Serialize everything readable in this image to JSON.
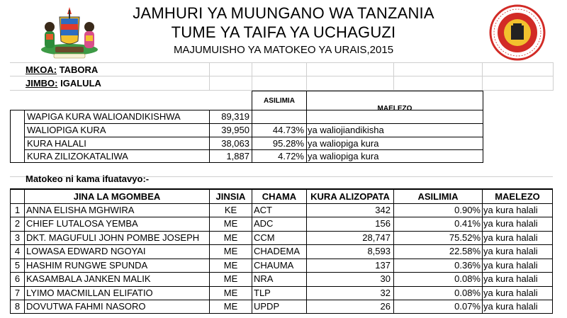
{
  "header": {
    "title_line1": "JAMHURI YA MUUNGANO WA TANZANIA",
    "title_line2": "TUME YA TAIFA YA UCHAGUZI",
    "subtitle": "MAJUMUISHO YA MATOKEO YA URAIS,2015"
  },
  "location": {
    "mkoa_label": "MKOA:",
    "mkoa_value": "TABORA",
    "jimbo_label": "JIMBO:",
    "jimbo_value": "IGALULA"
  },
  "summary": {
    "headers": {
      "asilimia": "ASILIMIA",
      "maelezo": "MAELEZO"
    },
    "rows": [
      {
        "label": "WAPIGA KURA WALIOANDIKISHWA",
        "value": "89,319",
        "percent": "",
        "note": ""
      },
      {
        "label": "WALIOPIGA KURA",
        "value": "39,950",
        "percent": "44.73%",
        "note": "ya waliojiandikisha"
      },
      {
        "label": "KURA HALALI",
        "value": "38,063",
        "percent": "95.28%",
        "note": "ya waliopiga kura"
      },
      {
        "label": "KURA ZILIZOKATALIWA",
        "value": "1,887",
        "percent": "4.72%",
        "note": "ya waliopiga kura"
      }
    ]
  },
  "results_intro": "Matokeo ni kama ifuatavyo:-",
  "results": {
    "headers": {
      "name": "JINA LA MGOMBEA",
      "gender": "JINSIA",
      "party": "CHAMA",
      "votes": "KURA ALIZOPATA",
      "percent": "ASILIMIA",
      "note": "MAELEZO"
    },
    "rows": [
      {
        "no": "1",
        "name": "ANNA ELISHA MGHWIRA",
        "gender": "KE",
        "party": "ACT",
        "votes": "342",
        "percent": "0.90%",
        "note": "ya kura halali"
      },
      {
        "no": "2",
        "name": "CHIEF LUTALOSA YEMBA",
        "gender": "ME",
        "party": "ADC",
        "votes": "156",
        "percent": "0.41%",
        "note": "ya kura halali"
      },
      {
        "no": "3",
        "name": "DKT. MAGUFULI JOHN POMBE JOSEPH",
        "gender": "ME",
        "party": "CCM",
        "votes": "28,747",
        "percent": "75.52%",
        "note": "ya kura halali"
      },
      {
        "no": "4",
        "name": "LOWASA EDWARD NGOYAI",
        "gender": "ME",
        "party": "CHADEMA",
        "votes": "8,593",
        "percent": "22.58%",
        "note": "ya kura halali"
      },
      {
        "no": "5",
        "name": "HASHIM RUNGWE SPUNDA",
        "gender": "ME",
        "party": "CHAUMA",
        "votes": "137",
        "percent": "0.36%",
        "note": "ya kura halali"
      },
      {
        "no": "6",
        "name": "KASAMBALA JANKEN MALIK",
        "gender": "ME",
        "party": "NRA",
        "votes": "30",
        "percent": "0.08%",
        "note": "ya kura halali"
      },
      {
        "no": "7",
        "name": "LYIMO MACMILLAN ELIFATIO",
        "gender": "ME",
        "party": "TLP",
        "votes": "32",
        "percent": "0.08%",
        "note": "ya kura halali"
      },
      {
        "no": "8",
        "name": "DOVUTWA FAHMI NASORO",
        "gender": "ME",
        "party": "UPDP",
        "votes": "26",
        "percent": "0.07%",
        "note": "ya kura halali"
      }
    ]
  },
  "logos": {
    "left": "coat-of-arms-icon",
    "right": "nec-seal-icon",
    "colors": {
      "seal_red": "#d22b26",
      "seal_yellow": "#f2c12e",
      "arms_green": "#2e8b3a",
      "arms_blue": "#2d6cc0"
    }
  }
}
